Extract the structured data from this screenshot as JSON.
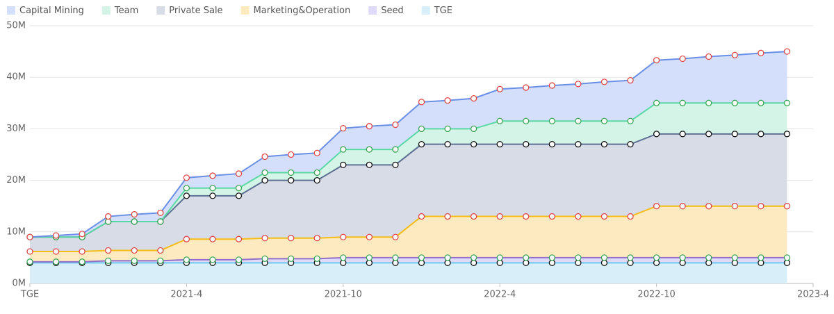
{
  "chart_data": {
    "type": "stacked_area",
    "categories": [
      "TGE",
      null,
      null,
      null,
      null,
      null,
      "2021-4",
      null,
      null,
      null,
      null,
      null,
      "2021-10",
      null,
      null,
      null,
      null,
      null,
      "2022-4",
      null,
      null,
      null,
      null,
      null,
      "2022-10",
      null,
      null,
      null,
      null,
      null,
      "2023-4"
    ],
    "series": [
      {
        "name": "Capital Mining",
        "color": "#6a8fe6",
        "fill": "#d4e0fb",
        "marker_color": "#e04848",
        "values": [
          0,
          0.3,
          0.6,
          1,
          1.4,
          1.7,
          2,
          2.4,
          2.8,
          3.1,
          3.5,
          3.8,
          4.1,
          4.5,
          4.8,
          5.2,
          5.5,
          5.9,
          6.2,
          6.5,
          6.9,
          7.2,
          7.6,
          7.9,
          8.3,
          8.6,
          9,
          9.3,
          9.7,
          10,
          null
        ]
      },
      {
        "name": "Team",
        "color": "#5ad8a6",
        "fill": "#d3f4e6",
        "marker_color": "#3aa655",
        "values": [
          0,
          0,
          0,
          0,
          0,
          0,
          1.5,
          1.5,
          1.5,
          1.5,
          1.5,
          1.5,
          3,
          3,
          3,
          3,
          3,
          3,
          4.5,
          4.5,
          4.5,
          4.5,
          4.5,
          4.5,
          6,
          6,
          6,
          6,
          6,
          6,
          null
        ]
      },
      {
        "name": "Private Sale",
        "color": "#5d7092",
        "fill": "#d8dce6",
        "marker_color": "#111111",
        "values": [
          2.8,
          2.8,
          2.8,
          5.6,
          5.6,
          5.6,
          8.4,
          8.4,
          8.4,
          11.2,
          11.2,
          11.2,
          14,
          14,
          14,
          14,
          14,
          14,
          14,
          14,
          14,
          14,
          14,
          14,
          14,
          14,
          14,
          14,
          14,
          14,
          null
        ]
      },
      {
        "name": "Marketing&Operation",
        "color": "#f6bd16",
        "fill": "#fdeac0",
        "marker_color": "#e04848",
        "values": [
          2,
          2,
          2,
          2,
          2,
          2,
          4,
          4,
          4,
          4,
          4,
          4,
          4,
          4,
          4,
          8,
          8,
          8,
          8,
          8,
          8,
          8,
          8,
          8,
          10,
          10,
          10,
          10,
          10,
          10,
          null
        ]
      },
      {
        "name": "Seed",
        "color": "#9270ca",
        "fill": "#e0dafa",
        "marker_color": "#3aa655",
        "values": [
          0.2,
          0.2,
          0.2,
          0.4,
          0.4,
          0.4,
          0.6,
          0.6,
          0.6,
          0.8,
          0.8,
          0.8,
          1,
          1,
          1,
          1,
          1,
          1,
          1,
          1,
          1,
          1,
          1,
          1,
          1,
          1,
          1,
          1,
          1,
          1,
          null
        ]
      },
      {
        "name": "TGE",
        "color": "#6dc8ec",
        "fill": "#d8eef9",
        "marker_color": "#111111",
        "values": [
          4,
          4,
          4,
          4,
          4,
          4,
          4,
          4,
          4,
          4,
          4,
          4,
          4,
          4,
          4,
          4,
          4,
          4,
          4,
          4,
          4,
          4,
          4,
          4,
          4,
          4,
          4,
          4,
          4,
          4,
          null
        ]
      }
    ],
    "ylim": [
      0,
      50
    ],
    "yticks": [
      {
        "value": 0,
        "label": "0M"
      },
      {
        "value": 10,
        "label": "10M"
      },
      {
        "value": 20,
        "label": "20M"
      },
      {
        "value": 30,
        "label": "30M"
      },
      {
        "value": 40,
        "label": "40M"
      },
      {
        "value": 50,
        "label": "50M"
      }
    ],
    "grid": true,
    "legend": "top-left"
  }
}
